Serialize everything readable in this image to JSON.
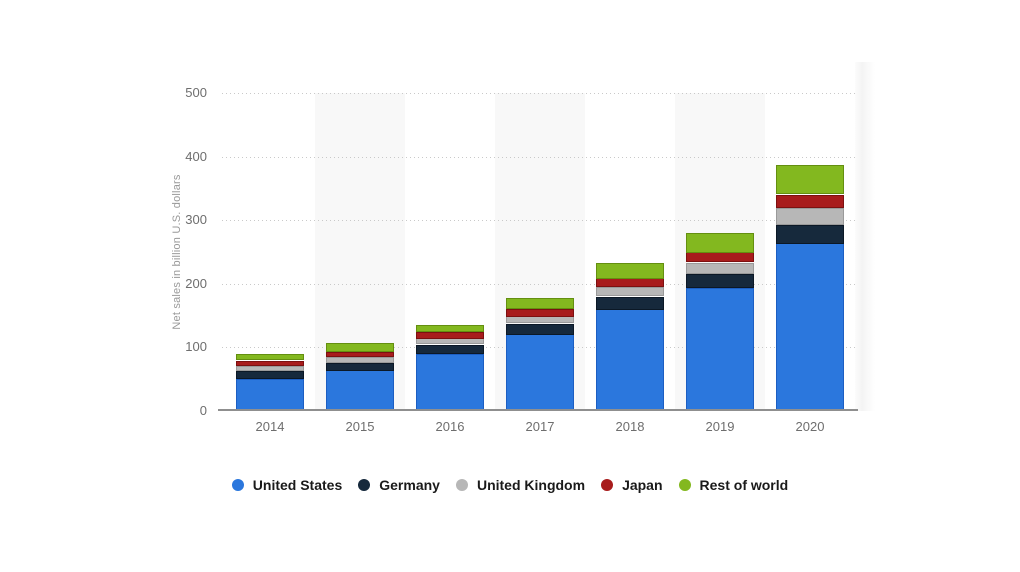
{
  "chart_data": {
    "type": "bar",
    "variant": "stacked",
    "title": "",
    "xlabel": "",
    "ylabel": "Net sales in billion U.S. dollars",
    "categories": [
      "2014",
      "2015",
      "2016",
      "2017",
      "2018",
      "2019",
      "2020"
    ],
    "y_ticks": [
      0,
      100,
      200,
      300,
      400,
      500
    ],
    "ylim": [
      0,
      500
    ],
    "grid": "horizontal-dotted",
    "legend_position": "bottom",
    "alt_column_band_color": "#f8f8f8",
    "series": [
      {
        "name": "United States",
        "color": "#2b77dd",
        "border_color": "#1c5ec2",
        "values": [
          50.83,
          63.71,
          90.35,
          120.49,
          160.15,
          193.64,
          263.52
        ]
      },
      {
        "name": "Germany",
        "color": "#16293c",
        "border_color": "#0b1826",
        "values": [
          11.92,
          11.82,
          14.15,
          16.95,
          19.88,
          22.23,
          29.57
        ]
      },
      {
        "name": "United Kingdom",
        "color": "#b7b7b7",
        "border_color": "#9a9a9a",
        "values": [
          8.34,
          9.03,
          9.55,
          11.37,
          14.52,
          17.53,
          26.48
        ]
      },
      {
        "name": "Japan",
        "color": "#a81c1c",
        "border_color": "#7c1010",
        "values": [
          7.91,
          8.26,
          10.8,
          11.91,
          13.83,
          16.0,
          20.46
        ]
      },
      {
        "name": "Rest of world",
        "color": "#83b81f",
        "border_color": "#648f10",
        "values": [
          9.98,
          14.19,
          11.14,
          17.19,
          24.51,
          31.13,
          46.04
        ]
      }
    ]
  }
}
